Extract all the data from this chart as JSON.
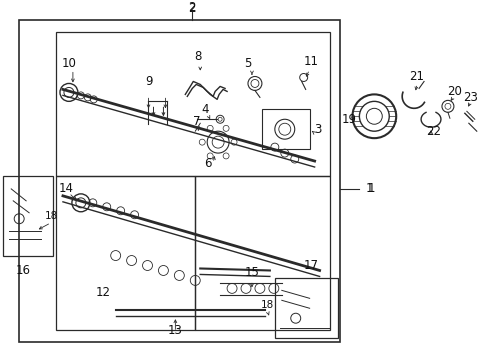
{
  "bg_color": "#ffffff",
  "line_color": "#2a2a2a",
  "text_color": "#111111",
  "fontsize": 8.5,
  "small_fontsize": 7.5,
  "fig_width": 4.89,
  "fig_height": 3.6,
  "dpi": 100
}
